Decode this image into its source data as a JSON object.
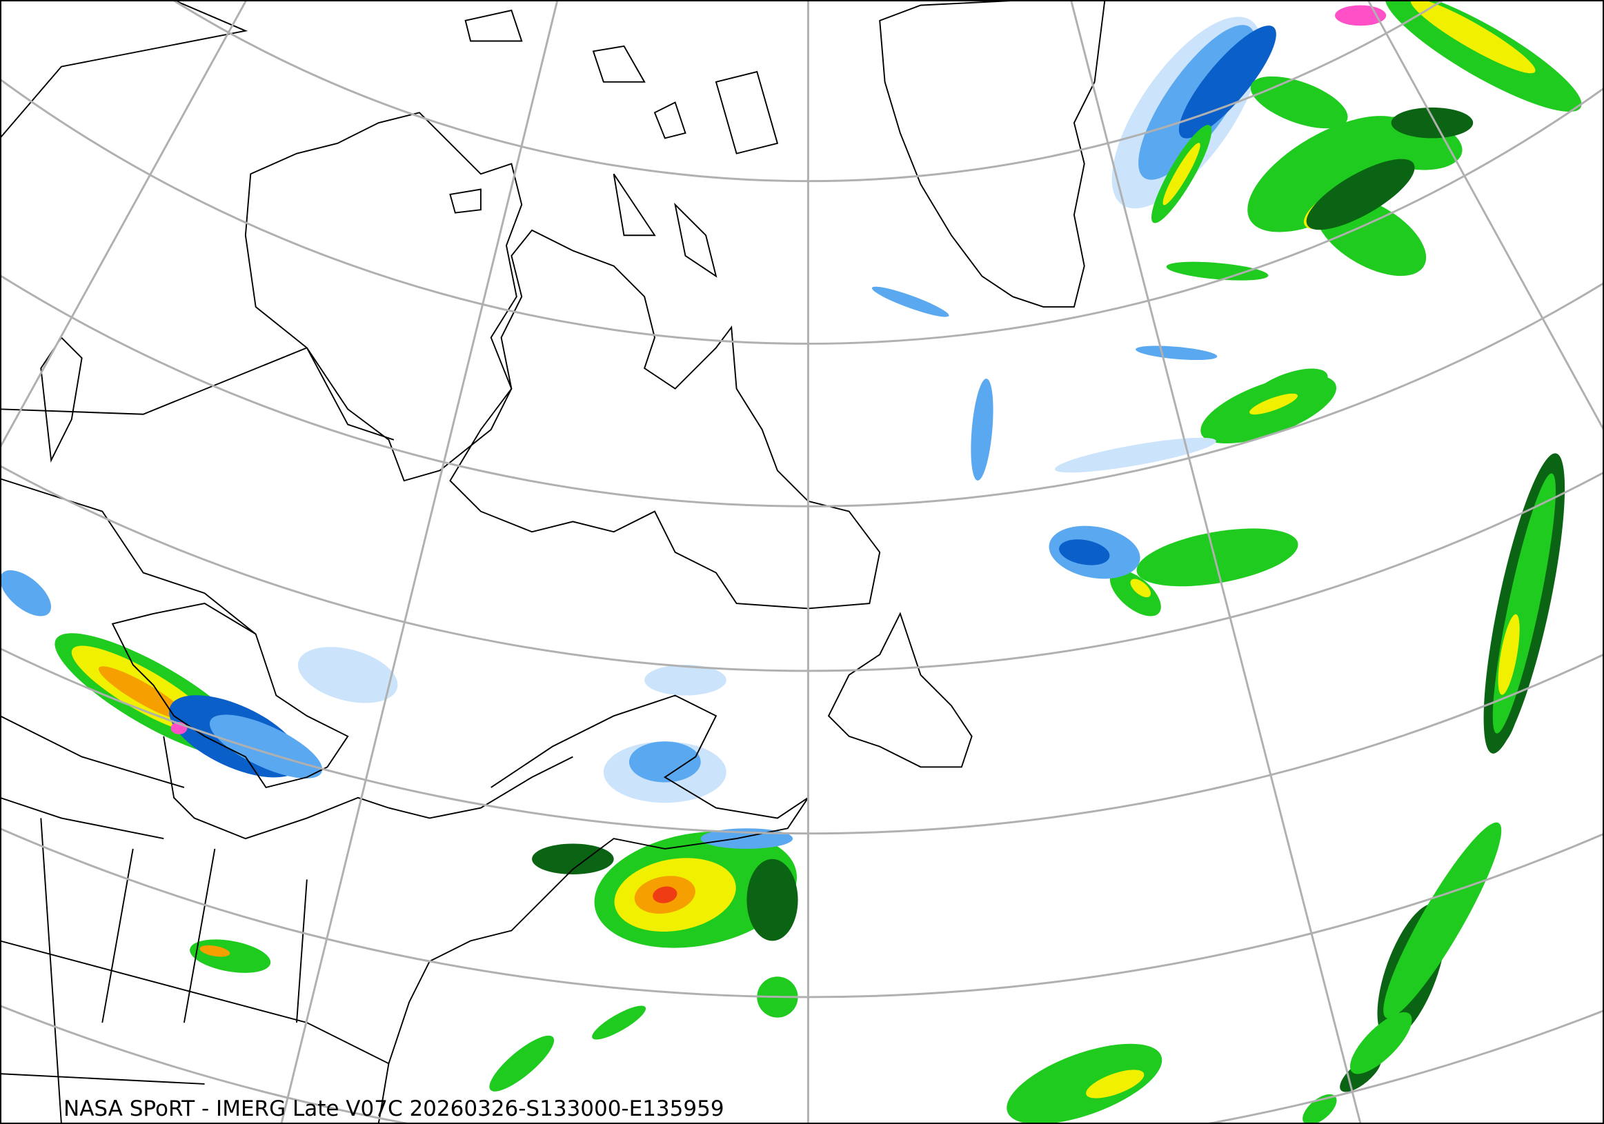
{
  "caption": "NASA SPoRT - IMERG Late V07C 20260326-S133000-E135959",
  "colors": {
    "graticule": "#b0b0b0",
    "coastline": "#000000",
    "precip_light_blue": "#cce4fb",
    "precip_blue": "#5aa8f0",
    "precip_dark_blue": "#0a5fc8",
    "precip_dark_green": "#0a6414",
    "precip_green": "#1ecb1e",
    "precip_bright_green": "#7cf000",
    "precip_yellow": "#f0f000",
    "precip_orange": "#f5a000",
    "precip_red": "#f03c14",
    "precip_pink": "#ff50c8"
  }
}
